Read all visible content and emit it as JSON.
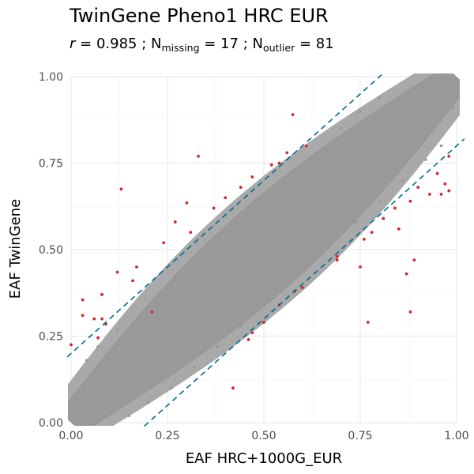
{
  "chart_data": {
    "type": "scatter",
    "title": "TwinGene Pheno1 HRC EUR",
    "subtitle": {
      "r_symbol": "r",
      "r_value": "= 0.985",
      "sep": ";",
      "n_symbol": "N",
      "missing_sub": "missing",
      "missing_value": "= 17",
      "outlier_sub": "outlier",
      "outlier_value": "= 81"
    },
    "xlabel": "EAF HRC+1000G_EUR",
    "ylabel": "EAF TwinGene",
    "xlim": [
      0,
      1
    ],
    "ylim": [
      0,
      1
    ],
    "x_ticks": [
      "0.00",
      "0.25",
      "0.50",
      "0.75",
      "1.00"
    ],
    "y_ticks": [
      "0.00",
      "0.25",
      "0.50",
      "0.75",
      "1.00"
    ],
    "grid": true,
    "legend": "none",
    "reference_lines": [
      {
        "slope": 1,
        "intercept": 0.2
      },
      {
        "slope": 1,
        "intercept": -0.2
      }
    ],
    "series": [
      {
        "color": "#999999",
        "points": [
          [
            0.02,
            0.03
          ],
          [
            0.05,
            0.07
          ],
          [
            0.1,
            0.14
          ],
          [
            0.15,
            0.13
          ],
          [
            0.2,
            0.22
          ],
          [
            0.25,
            0.27
          ],
          [
            0.3,
            0.29
          ],
          [
            0.35,
            0.37
          ],
          [
            0.4,
            0.38
          ],
          [
            0.45,
            0.47
          ],
          [
            0.5,
            0.51
          ],
          [
            0.55,
            0.53
          ],
          [
            0.6,
            0.62
          ],
          [
            0.65,
            0.64
          ],
          [
            0.7,
            0.71
          ],
          [
            0.75,
            0.73
          ],
          [
            0.8,
            0.82
          ],
          [
            0.85,
            0.84
          ],
          [
            0.9,
            0.91
          ],
          [
            0.95,
            0.94
          ],
          [
            0.98,
            0.99
          ],
          [
            0.04,
            0.18
          ],
          [
            0.07,
            0.22
          ],
          [
            0.12,
            0.27
          ],
          [
            0.2,
            0.33
          ],
          [
            0.26,
            0.38
          ],
          [
            0.33,
            0.46
          ],
          [
            0.38,
            0.52
          ],
          [
            0.44,
            0.57
          ],
          [
            0.5,
            0.63
          ],
          [
            0.55,
            0.69
          ],
          [
            0.6,
            0.74
          ],
          [
            0.66,
            0.79
          ],
          [
            0.7,
            0.85
          ],
          [
            0.75,
            0.9
          ],
          [
            0.8,
            0.94
          ],
          [
            0.2,
            0.06
          ],
          [
            0.26,
            0.1
          ],
          [
            0.32,
            0.16
          ],
          [
            0.38,
            0.22
          ],
          [
            0.44,
            0.28
          ],
          [
            0.5,
            0.35
          ],
          [
            0.56,
            0.41
          ],
          [
            0.62,
            0.46
          ],
          [
            0.68,
            0.53
          ],
          [
            0.74,
            0.58
          ],
          [
            0.8,
            0.64
          ],
          [
            0.86,
            0.7
          ],
          [
            0.92,
            0.76
          ],
          [
            0.96,
            0.8
          ],
          [
            0.01,
            0.07
          ],
          [
            0.03,
            0.11
          ],
          [
            0.05,
            0.01
          ],
          [
            0.1,
            0.03
          ],
          [
            0.15,
            0.02
          ],
          [
            0.93,
            0.99
          ],
          [
            0.97,
            0.96
          ],
          [
            0.99,
            0.91
          ]
        ]
      },
      {
        "color": "#d62728",
        "points": [
          [
            0.13,
            0.675
          ],
          [
            0.33,
            0.77
          ],
          [
            0.575,
            0.89
          ],
          [
            0.3,
            0.635
          ],
          [
            0.24,
            0.52
          ],
          [
            0.21,
            0.32
          ],
          [
            0.17,
            0.45
          ],
          [
            0.12,
            0.435
          ],
          [
            0.16,
            0.41
          ],
          [
            0.03,
            0.355
          ],
          [
            0.03,
            0.31
          ],
          [
            0.06,
            0.3
          ],
          [
            0.08,
            0.37
          ],
          [
            0.08,
            0.3
          ],
          [
            0.09,
            0.285
          ],
          [
            0.07,
            0.245
          ],
          [
            0.0,
            0.225
          ],
          [
            0.27,
            0.58
          ],
          [
            0.31,
            0.55
          ],
          [
            0.37,
            0.62
          ],
          [
            0.4,
            0.65
          ],
          [
            0.44,
            0.68
          ],
          [
            0.47,
            0.71
          ],
          [
            0.52,
            0.745
          ],
          [
            0.54,
            0.75
          ],
          [
            0.56,
            0.78
          ],
          [
            0.61,
            0.8
          ],
          [
            0.42,
            0.1
          ],
          [
            0.47,
            0.26
          ],
          [
            0.46,
            0.24
          ],
          [
            0.5,
            0.29
          ],
          [
            0.54,
            0.34
          ],
          [
            0.58,
            0.38
          ],
          [
            0.6,
            0.39
          ],
          [
            0.69,
            0.47
          ],
          [
            0.69,
            0.48
          ],
          [
            0.76,
            0.53
          ],
          [
            0.78,
            0.55
          ],
          [
            0.81,
            0.59
          ],
          [
            0.84,
            0.62
          ],
          [
            0.88,
            0.64
          ],
          [
            0.9,
            0.68
          ],
          [
            0.93,
            0.66
          ],
          [
            0.96,
            0.66
          ],
          [
            0.98,
            0.67
          ],
          [
            0.97,
            0.69
          ],
          [
            0.95,
            0.72
          ],
          [
            0.98,
            0.77
          ],
          [
            0.75,
            0.45
          ],
          [
            0.85,
            0.56
          ],
          [
            0.89,
            0.47
          ],
          [
            0.87,
            0.43
          ],
          [
            0.88,
            0.32
          ],
          [
            0.77,
            0.29
          ]
        ]
      }
    ]
  }
}
